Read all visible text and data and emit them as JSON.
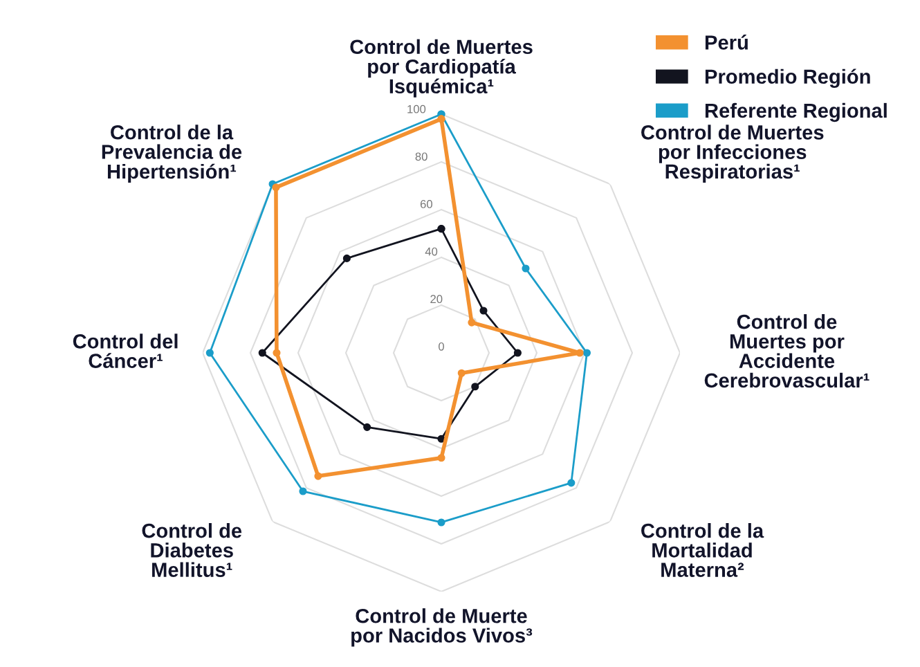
{
  "chart_data": {
    "type": "radar",
    "categories": [
      "Control de Muertes\npor Cardiopatía\nIsquémica¹",
      "Control de Muertes\npor Infecciones\nRespiratorias¹",
      "Control de\nMuertes por\nAccidente\nCerebrovascular¹",
      "Control de la\nMortalidad\nMaterna²",
      "Control de Muerte\npor Nacidos Vivos³",
      "Control de\nDiabetes\nMellitus¹",
      "Control del\nCáncer¹",
      "Control de la\nPrevalencia de\nHipertensión¹"
    ],
    "series": [
      {
        "name": "Perú",
        "color": "#f39130",
        "values": [
          98,
          18,
          58,
          12,
          44,
          73,
          69,
          98
        ]
      },
      {
        "name": "Promedio Región",
        "color": "#12141f",
        "values": [
          52,
          25,
          32,
          20,
          36,
          44,
          75,
          56
        ]
      },
      {
        "name": "Referente Regional",
        "color": "#1b9dc9",
        "values": [
          100,
          50,
          61,
          77,
          71,
          82,
          97,
          100
        ]
      }
    ],
    "ylim": [
      0,
      100
    ],
    "yticks": [
      0,
      20,
      40,
      60,
      80,
      100
    ],
    "grid": true,
    "legend": "top right",
    "marker": "circle"
  }
}
